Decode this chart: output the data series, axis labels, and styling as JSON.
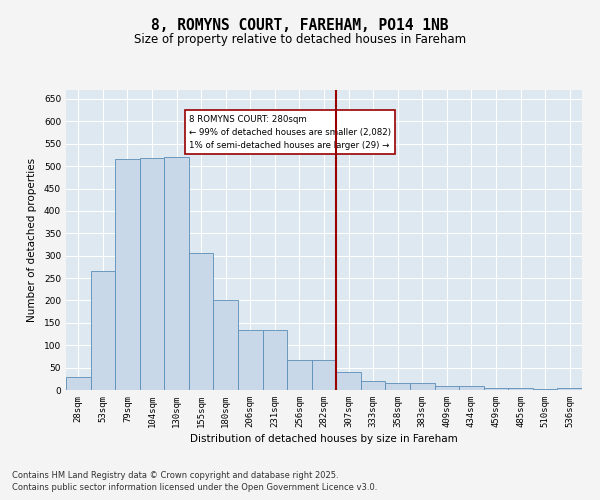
{
  "title": "8, ROMYNS COURT, FAREHAM, PO14 1NB",
  "subtitle": "Size of property relative to detached houses in Fareham",
  "xlabel": "Distribution of detached houses by size in Fareham",
  "ylabel": "Number of detached properties",
  "categories": [
    "28sqm",
    "53sqm",
    "79sqm",
    "104sqm",
    "130sqm",
    "155sqm",
    "180sqm",
    "206sqm",
    "231sqm",
    "256sqm",
    "282sqm",
    "307sqm",
    "333sqm",
    "358sqm",
    "383sqm",
    "409sqm",
    "434sqm",
    "459sqm",
    "485sqm",
    "510sqm",
    "536sqm"
  ],
  "values": [
    30,
    265,
    515,
    518,
    520,
    305,
    200,
    135,
    135,
    68,
    68,
    40,
    20,
    15,
    15,
    8,
    8,
    5,
    5,
    3,
    5
  ],
  "bar_color": "#c8d8e8",
  "bar_edge_color": "#5b8db8",
  "vline_x_index": 10.5,
  "vline_color": "#990000",
  "annotation_text": "8 ROMYNS COURT: 280sqm\n← 99% of detached houses are smaller (2,082)\n1% of semi-detached houses are larger (29) →",
  "annotation_box_color": "#990000",
  "annotation_text_color": "#000000",
  "annotation_bg": "#ffffff",
  "ylim": [
    0,
    670
  ],
  "yticks": [
    0,
    50,
    100,
    150,
    200,
    250,
    300,
    350,
    400,
    450,
    500,
    550,
    600,
    650
  ],
  "fig_bg": "#f4f4f4",
  "plot_bg": "#dde8f0",
  "grid_color": "#ffffff",
  "footer_line1": "Contains HM Land Registry data © Crown copyright and database right 2025.",
  "footer_line2": "Contains public sector information licensed under the Open Government Licence v3.0.",
  "title_fontsize": 10.5,
  "subtitle_fontsize": 8.5,
  "axis_label_fontsize": 7.5,
  "tick_fontsize": 6.5,
  "footer_fontsize": 6.0
}
